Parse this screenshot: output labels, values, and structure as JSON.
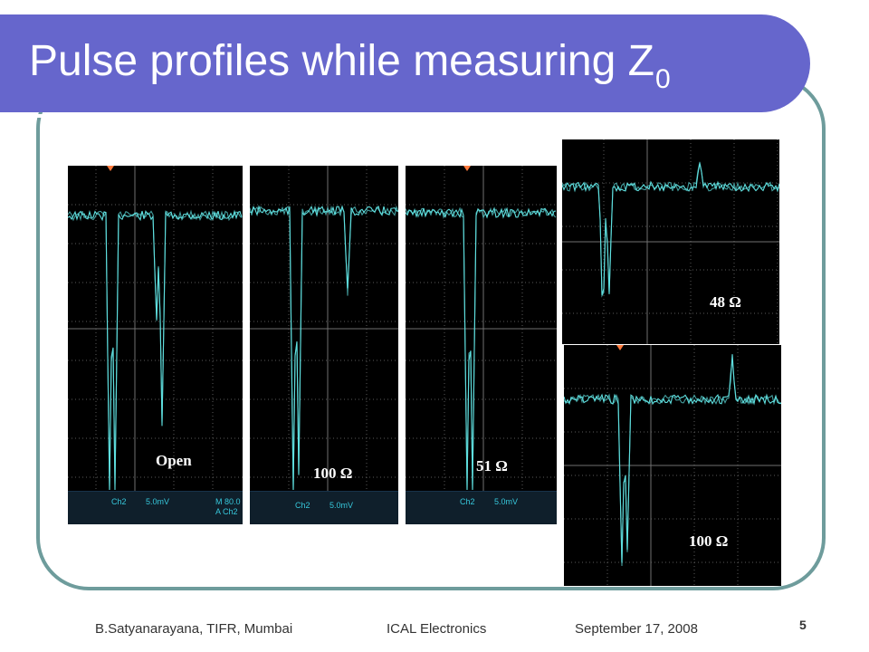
{
  "slide": {
    "title": "Pulse profiles while measuring Z",
    "title_subscript": "0",
    "slide_number": "5"
  },
  "footer": {
    "author": "B.Satyanarayana, TIFR, Mumbai",
    "event": "ICAL Electronics",
    "date": "September 17, 2008"
  },
  "scopes": [
    {
      "label": "Open",
      "status": [
        "Ch2",
        "5.0mV",
        "M 80.0",
        "A  Ch2"
      ]
    },
    {
      "label": "100 Ω",
      "status": [
        "Ch2",
        "5.0mV"
      ]
    },
    {
      "label": "51 Ω",
      "status": [
        "Ch2",
        "5.0mV"
      ]
    },
    {
      "label": "48 Ω",
      "status": []
    },
    {
      "label": "100 Ω",
      "status": []
    }
  ],
  "colors": {
    "title_bar": "#6666cc",
    "frame_border": "#6e9c9c",
    "trace": "#5fe0e0",
    "grid": "#5a5a5a",
    "trigger_marker": "#ff7a3d"
  }
}
